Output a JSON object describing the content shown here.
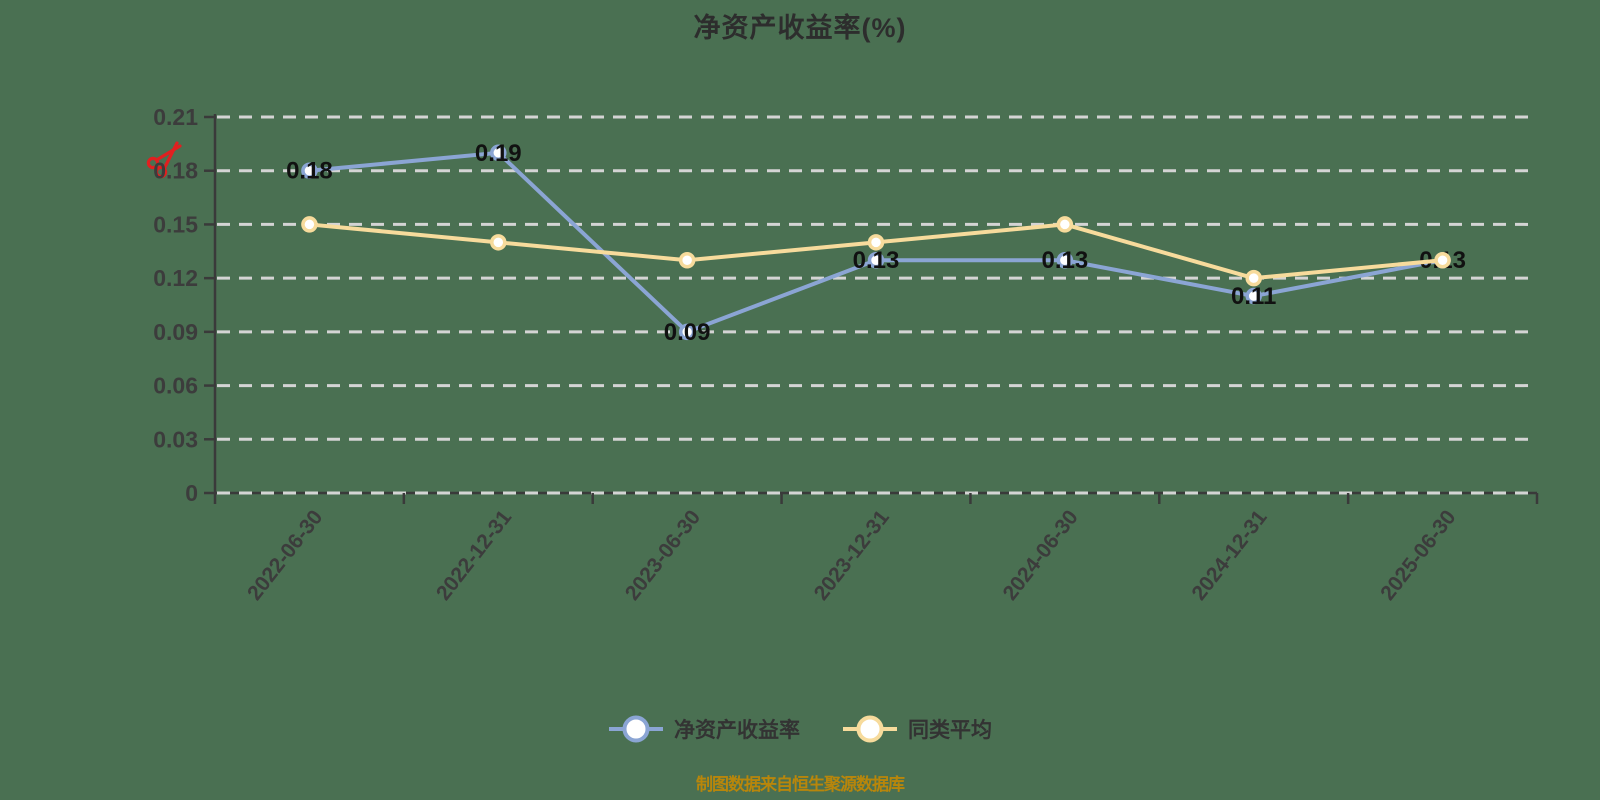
{
  "page": {
    "background_color": "#4A7052"
  },
  "chart_data": {
    "type": "line",
    "title": "净资产收益率(%)",
    "categories": [
      "2022-06-30",
      "2022-12-31",
      "2023-06-30",
      "2023-12-31",
      "2024-06-30",
      "2024-12-31",
      "2025-06-30"
    ],
    "series": [
      {
        "name": "净资产收益率",
        "color": "#8BA5D4",
        "point_fill": "#FFFFFF",
        "values": [
          0.18,
          0.19,
          0.09,
          0.13,
          0.13,
          0.11,
          0.13
        ],
        "labels": [
          "0.18",
          "0.19",
          "0.09",
          "0.13",
          "0.13",
          "0.11",
          "0.13"
        ],
        "show_labels": true
      },
      {
        "name": "同类平均",
        "color": "#F7DB9C",
        "point_fill": "#FFFFFF",
        "values": [
          0.15,
          0.14,
          0.13,
          0.14,
          0.15,
          0.12,
          0.13
        ],
        "labels": [],
        "show_labels": false
      }
    ],
    "ylim": [
      0,
      0.21
    ],
    "ytick_values": [
      0,
      0.03,
      0.06,
      0.09,
      0.12,
      0.15,
      0.18,
      0.21
    ],
    "ytick_labels": [
      "0",
      "0.03",
      "0.06",
      "0.09",
      "0.12",
      "0.15",
      "0.18",
      "0.21"
    ],
    "grid": {
      "show": true,
      "style": "dashed",
      "color": "#D4D4D4"
    },
    "axis_color": "#3A3A3A",
    "axis_label_color": "#3C3C3C",
    "data_label_color": "#111111",
    "legend": {
      "position": "bottom",
      "items": [
        "净资产收益率",
        "同类平均"
      ]
    },
    "source_note": "制图数据来自恒生聚源数据库",
    "note_color": "#B8860B"
  },
  "annotations": {
    "scissors_icon_color": "#E02020"
  }
}
